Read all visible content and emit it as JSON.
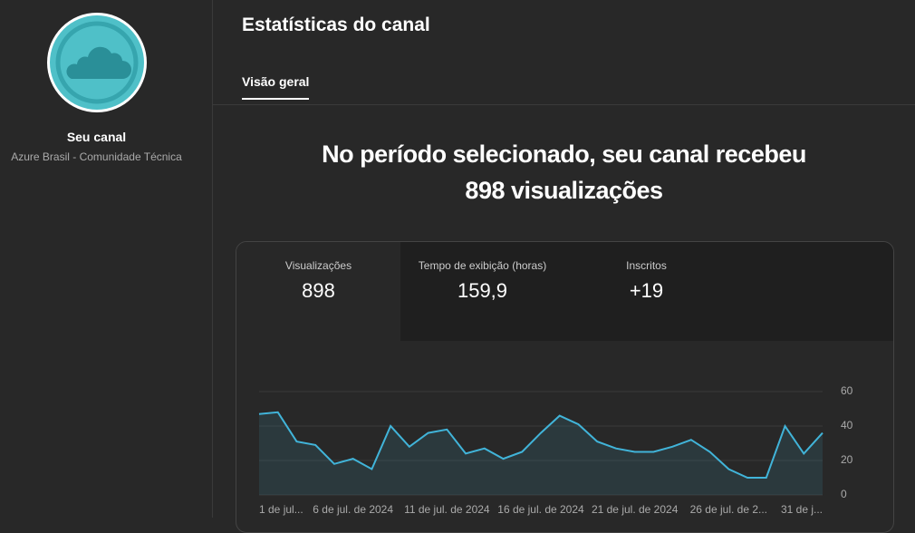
{
  "sidebar": {
    "channel_label": "Seu canal",
    "channel_name": "Azure Brasil - Comunidade Técnica"
  },
  "header": {
    "title": "Estatísticas do canal",
    "tab": "Visão geral"
  },
  "summary": {
    "line1": "No período selecionado, seu canal recebeu",
    "line2": "898 visualizações"
  },
  "metrics": [
    {
      "label": "Visualizações",
      "value": "898"
    },
    {
      "label": "Tempo de exibição (horas)",
      "value": "159,9"
    },
    {
      "label": "Inscritos",
      "value": "+19"
    }
  ],
  "chart_data": {
    "type": "line",
    "categories": [
      "1 de jul...",
      null,
      null,
      null,
      null,
      "6 de jul. de 2024",
      null,
      null,
      null,
      null,
      "11 de jul. de 2024",
      null,
      null,
      null,
      null,
      "16 de jul. de 2024",
      null,
      null,
      null,
      null,
      "21 de jul. de 2024",
      null,
      null,
      null,
      null,
      "26 de jul. de 2...",
      null,
      null,
      null,
      null,
      "31 de j..."
    ],
    "series": [
      {
        "name": "Visualizações",
        "color": "#41b4d9",
        "values": [
          47,
          48,
          31,
          29,
          18,
          21,
          15,
          40,
          28,
          36,
          38,
          24,
          27,
          21,
          25,
          36,
          46,
          41,
          31,
          27,
          25,
          25,
          28,
          32,
          25,
          15,
          10,
          10,
          40,
          24,
          36
        ]
      }
    ],
    "ylim": [
      0,
      60
    ],
    "yticks": [
      0,
      20,
      40,
      60
    ],
    "grid": true
  }
}
